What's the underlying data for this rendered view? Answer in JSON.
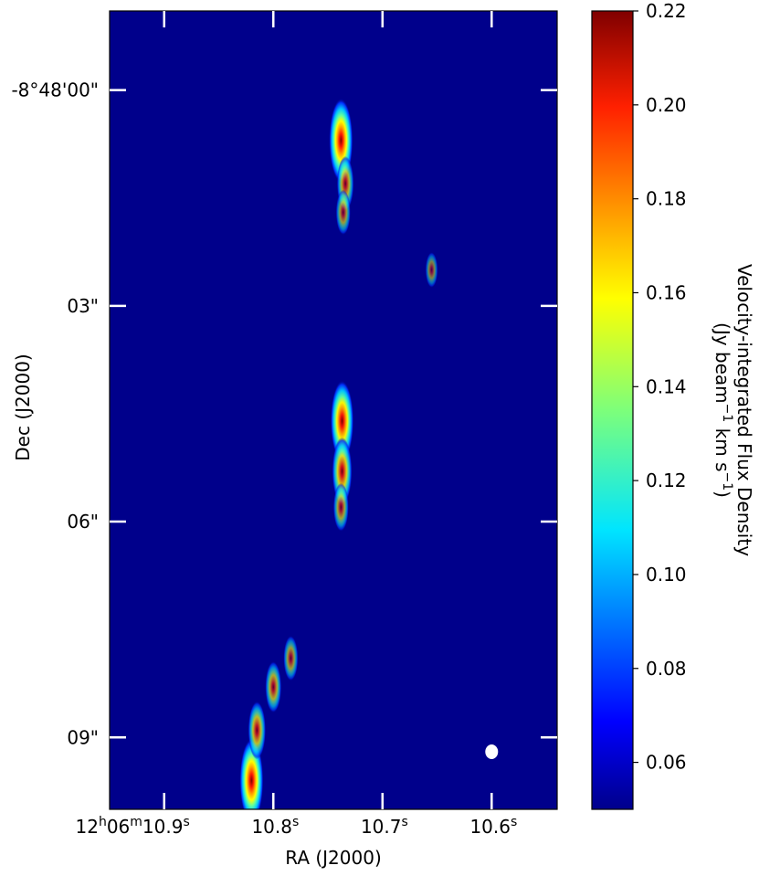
{
  "chart_data": {
    "type": "heatmap",
    "colormap": "jet",
    "background_color": "#00008b",
    "xlabel": "RA (J2000)",
    "ylabel": "Dec (J2000)",
    "x_ticks": [
      {
        "h": "12",
        "m": "06",
        "s": "10.9",
        "ra_sec": 10.9
      },
      {
        "h": "",
        "m": "",
        "s": "10.8",
        "ra_sec": 10.8
      },
      {
        "h": "",
        "m": "",
        "s": "10.7",
        "ra_sec": 10.7
      },
      {
        "h": "",
        "m": "",
        "s": "10.6",
        "ra_sec": 10.6
      }
    ],
    "y_ticks": [
      {
        "label": "-8°48'00\"",
        "dec_arcsec": 0
      },
      {
        "label": "03\"",
        "dec_arcsec": 3
      },
      {
        "label": "06\"",
        "dec_arcsec": 6
      },
      {
        "label": "09\"",
        "dec_arcsec": 9
      }
    ],
    "xlim_ra_sec": [
      10.95,
      10.54
    ],
    "ylim_dec_arcsec": [
      10.0,
      -1.1
    ],
    "colorbar": {
      "label_line1": "Velocity-integrated Flux Density",
      "label_line2_parts": [
        "(Jy beam",
        "−1",
        " km s",
        "−1",
        ")"
      ],
      "min": 0.05,
      "max": 0.22,
      "ticks": [
        "0.22",
        "0.20",
        "0.18",
        "0.16",
        "0.14",
        "0.12",
        "0.10",
        "0.08",
        "0.06"
      ],
      "tick_values": [
        0.22,
        0.2,
        0.18,
        0.16,
        0.14,
        0.12,
        0.1,
        0.08,
        0.06
      ]
    },
    "beam": {
      "ra_sec": 10.6,
      "dec_arcsec": 9.2,
      "color": "#ffffff"
    },
    "emission_knots": [
      {
        "ra_sec": 10.738,
        "dec_arcsec": 0.7,
        "peak": 0.22
      },
      {
        "ra_sec": 10.734,
        "dec_arcsec": 1.3,
        "peak": 0.13
      },
      {
        "ra_sec": 10.736,
        "dec_arcsec": 1.7,
        "peak": 0.1
      },
      {
        "ra_sec": 10.737,
        "dec_arcsec": 4.6,
        "peak": 0.21
      },
      {
        "ra_sec": 10.737,
        "dec_arcsec": 5.3,
        "peak": 0.17
      },
      {
        "ra_sec": 10.738,
        "dec_arcsec": 5.8,
        "peak": 0.11
      },
      {
        "ra_sec": 10.82,
        "dec_arcsec": 9.6,
        "peak": 0.22
      },
      {
        "ra_sec": 10.815,
        "dec_arcsec": 8.9,
        "peak": 0.14
      },
      {
        "ra_sec": 10.8,
        "dec_arcsec": 8.3,
        "peak": 0.12
      },
      {
        "ra_sec": 10.784,
        "dec_arcsec": 7.9,
        "peak": 0.1
      },
      {
        "ra_sec": 10.655,
        "dec_arcsec": 2.5,
        "peak": 0.07
      }
    ]
  }
}
